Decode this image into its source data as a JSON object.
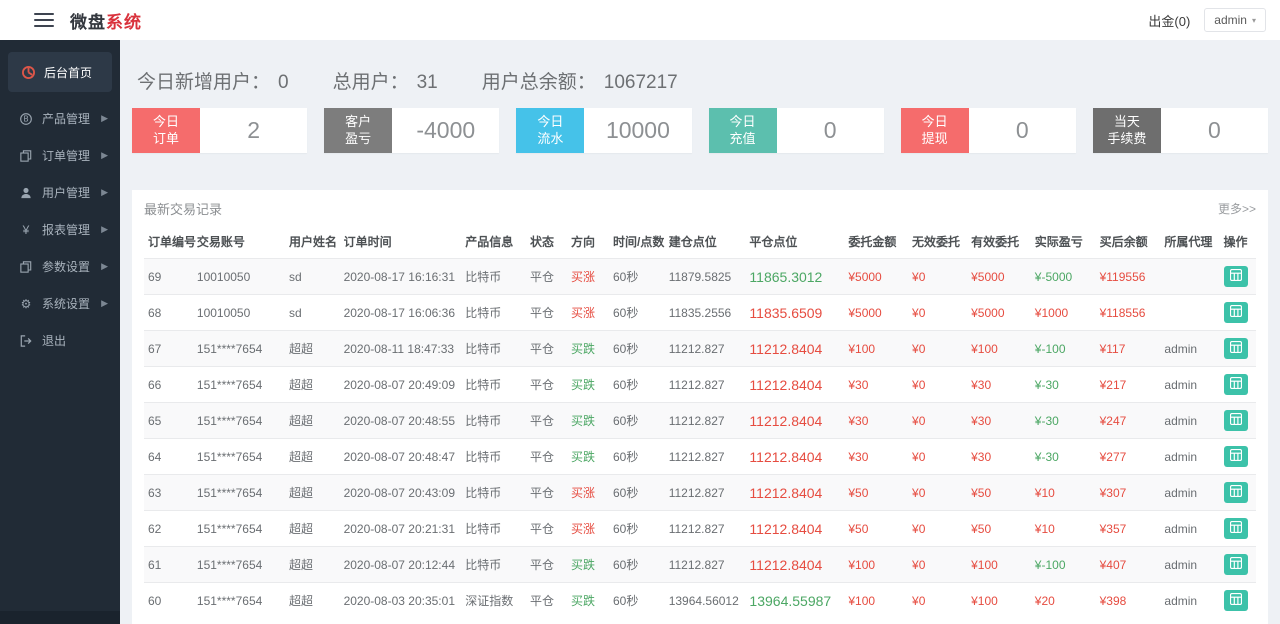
{
  "header": {
    "brand_primary": "微盘",
    "brand_accent": "系统",
    "withdraw_label": "出金(0)",
    "user_menu": "admin"
  },
  "sidebar": {
    "items": [
      {
        "label": "后台首页",
        "icon": "dashboard-icon",
        "active": true
      },
      {
        "label": "产品管理",
        "icon": "bitcoin-icon"
      },
      {
        "label": "订单管理",
        "icon": "orders-icon"
      },
      {
        "label": "用户管理",
        "icon": "user-icon"
      },
      {
        "label": "报表管理",
        "icon": "yen-icon"
      },
      {
        "label": "参数设置",
        "icon": "params-icon"
      },
      {
        "label": "系统设置",
        "icon": "gear-icon"
      },
      {
        "label": "退出",
        "icon": "logout-icon"
      }
    ]
  },
  "stats": [
    {
      "label": "今日新增用户：",
      "value": "0"
    },
    {
      "label": "总用户：",
      "value": "31"
    },
    {
      "label": "用户总余额：",
      "value": "1067217"
    }
  ],
  "cards": [
    {
      "label_line1": "今日",
      "label_line2": "订单",
      "value": "2",
      "color": "#f56c6c"
    },
    {
      "label_line1": "客户",
      "label_line2": "盈亏",
      "value": "-4000",
      "color": "#7d7d7d"
    },
    {
      "label_line1": "今日",
      "label_line2": "流水",
      "value": "10000",
      "color": "#45c2e9"
    },
    {
      "label_line1": "今日",
      "label_line2": "充值",
      "value": "0",
      "color": "#5cbfae"
    },
    {
      "label_line1": "今日",
      "label_line2": "提现",
      "value": "0",
      "color": "#f56c6c"
    },
    {
      "label_line1": "当天",
      "label_line2": "手续费",
      "value": "0",
      "color": "#6e6e6e"
    }
  ],
  "panel": {
    "title": "最新交易记录",
    "more_label": "更多>>"
  },
  "table": {
    "columns": [
      {
        "key": "id",
        "label": "订单编号"
      },
      {
        "key": "account",
        "label": "交易账号"
      },
      {
        "key": "name",
        "label": "用户姓名"
      },
      {
        "key": "time",
        "label": "订单时间"
      },
      {
        "key": "product",
        "label": "产品信息"
      },
      {
        "key": "status",
        "label": "状态"
      },
      {
        "key": "direction",
        "label": "方向"
      },
      {
        "key": "duration",
        "label": "时间/点数"
      },
      {
        "key": "open",
        "label": "建仓点位"
      },
      {
        "key": "close",
        "label": "平仓点位"
      },
      {
        "key": "amount",
        "label": "委托金额",
        "color": "red"
      },
      {
        "key": "invalid",
        "label": "无效委托",
        "color": "red"
      },
      {
        "key": "valid",
        "label": "有效委托",
        "color": "red"
      },
      {
        "key": "profit",
        "label": "实际盈亏"
      },
      {
        "key": "balance",
        "label": "买后余额",
        "color": "red"
      },
      {
        "key": "agent",
        "label": "所属代理"
      },
      {
        "key": "action",
        "label": "操作"
      }
    ],
    "rows": [
      {
        "id": "69",
        "account": "10010050",
        "name": "sd",
        "time": "2020-08-17 16:16:31",
        "product": "比特币",
        "status": "平仓",
        "direction": "买涨",
        "direction_color": "red",
        "duration": "60秒",
        "open": "11879.5825",
        "close": "11865.3012",
        "close_color": "green",
        "amount": "¥5000",
        "invalid": "¥0",
        "valid": "¥5000",
        "profit": "¥-5000",
        "profit_color": "green",
        "balance": "¥119556",
        "agent": ""
      },
      {
        "id": "68",
        "account": "10010050",
        "name": "sd",
        "time": "2020-08-17 16:06:36",
        "product": "比特币",
        "status": "平仓",
        "direction": "买涨",
        "direction_color": "red",
        "duration": "60秒",
        "open": "11835.2556",
        "close": "11835.6509",
        "close_color": "red",
        "amount": "¥5000",
        "invalid": "¥0",
        "valid": "¥5000",
        "profit": "¥1000",
        "profit_color": "red",
        "balance": "¥118556",
        "agent": ""
      },
      {
        "id": "67",
        "account": "151****7654",
        "name": "超超",
        "time": "2020-08-11 18:47:33",
        "product": "比特币",
        "status": "平仓",
        "direction": "买跌",
        "direction_color": "green",
        "duration": "60秒",
        "open": "11212.827",
        "close": "11212.8404",
        "close_color": "red",
        "amount": "¥100",
        "invalid": "¥0",
        "valid": "¥100",
        "profit": "¥-100",
        "profit_color": "green",
        "balance": "¥117",
        "agent": "admin"
      },
      {
        "id": "66",
        "account": "151****7654",
        "name": "超超",
        "time": "2020-08-07 20:49:09",
        "product": "比特币",
        "status": "平仓",
        "direction": "买跌",
        "direction_color": "green",
        "duration": "60秒",
        "open": "11212.827",
        "close": "11212.8404",
        "close_color": "red",
        "amount": "¥30",
        "invalid": "¥0",
        "valid": "¥30",
        "profit": "¥-30",
        "profit_color": "green",
        "balance": "¥217",
        "agent": "admin"
      },
      {
        "id": "65",
        "account": "151****7654",
        "name": "超超",
        "time": "2020-08-07 20:48:55",
        "product": "比特币",
        "status": "平仓",
        "direction": "买跌",
        "direction_color": "green",
        "duration": "60秒",
        "open": "11212.827",
        "close": "11212.8404",
        "close_color": "red",
        "amount": "¥30",
        "invalid": "¥0",
        "valid": "¥30",
        "profit": "¥-30",
        "profit_color": "green",
        "balance": "¥247",
        "agent": "admin"
      },
      {
        "id": "64",
        "account": "151****7654",
        "name": "超超",
        "time": "2020-08-07 20:48:47",
        "product": "比特币",
        "status": "平仓",
        "direction": "买跌",
        "direction_color": "green",
        "duration": "60秒",
        "open": "11212.827",
        "close": "11212.8404",
        "close_color": "red",
        "amount": "¥30",
        "invalid": "¥0",
        "valid": "¥30",
        "profit": "¥-30",
        "profit_color": "green",
        "balance": "¥277",
        "agent": "admin"
      },
      {
        "id": "63",
        "account": "151****7654",
        "name": "超超",
        "time": "2020-08-07 20:43:09",
        "product": "比特币",
        "status": "平仓",
        "direction": "买涨",
        "direction_color": "red",
        "duration": "60秒",
        "open": "11212.827",
        "close": "11212.8404",
        "close_color": "red",
        "amount": "¥50",
        "invalid": "¥0",
        "valid": "¥50",
        "profit": "¥10",
        "profit_color": "red",
        "balance": "¥307",
        "agent": "admin"
      },
      {
        "id": "62",
        "account": "151****7654",
        "name": "超超",
        "time": "2020-08-07 20:21:31",
        "product": "比特币",
        "status": "平仓",
        "direction": "买涨",
        "direction_color": "red",
        "duration": "60秒",
        "open": "11212.827",
        "close": "11212.8404",
        "close_color": "red",
        "amount": "¥50",
        "invalid": "¥0",
        "valid": "¥50",
        "profit": "¥10",
        "profit_color": "red",
        "balance": "¥357",
        "agent": "admin"
      },
      {
        "id": "61",
        "account": "151****7654",
        "name": "超超",
        "time": "2020-08-07 20:12:44",
        "product": "比特币",
        "status": "平仓",
        "direction": "买跌",
        "direction_color": "green",
        "duration": "60秒",
        "open": "11212.827",
        "close": "11212.8404",
        "close_color": "red",
        "amount": "¥100",
        "invalid": "¥0",
        "valid": "¥100",
        "profit": "¥-100",
        "profit_color": "green",
        "balance": "¥407",
        "agent": "admin"
      },
      {
        "id": "60",
        "account": "151****7654",
        "name": "超超",
        "time": "2020-08-03 20:35:01",
        "product": "深证指数",
        "status": "平仓",
        "direction": "买跌",
        "direction_color": "green",
        "duration": "60秒",
        "open": "13964.56012",
        "close": "13964.55987",
        "close_color": "green",
        "amount": "¥100",
        "invalid": "¥0",
        "valid": "¥100",
        "profit": "¥20",
        "profit_color": "red",
        "balance": "¥398",
        "agent": "admin"
      }
    ]
  }
}
